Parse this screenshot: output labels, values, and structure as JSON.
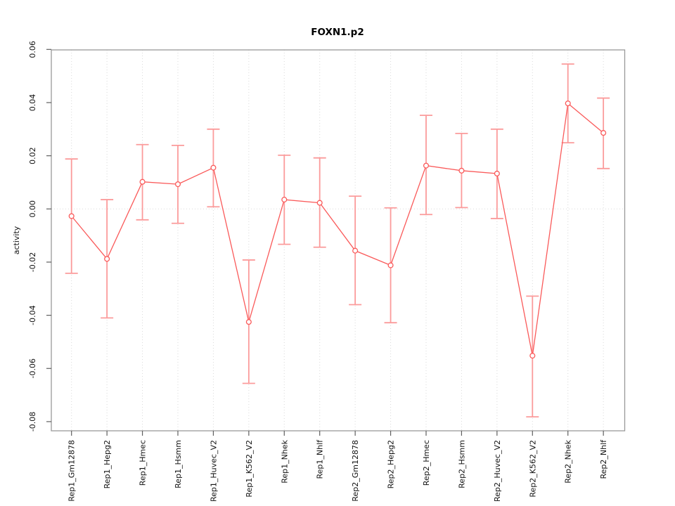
{
  "chart_data": {
    "type": "line",
    "title": "FOXN1.p2",
    "xlabel": "",
    "ylabel": "activity",
    "legend": "none",
    "grid": {
      "vertical": "dotted at every category",
      "horizontal": "dotted at y=0 only"
    },
    "ylim": [
      -0.083,
      0.06
    ],
    "ytick_values": [
      0.06,
      0.04,
      0.02,
      0.0,
      -0.02,
      -0.04,
      -0.06,
      -0.08
    ],
    "ytick_labels": [
      "0.06",
      "0.04",
      "0.02",
      "0.00",
      "-0.02",
      "-0.04",
      "-0.06",
      "-0.08"
    ],
    "categories": [
      "Rep1_Gm12878",
      "Rep1_Hepg2",
      "Rep1_Hmec",
      "Rep1_Hsmm",
      "Rep1_Huvec_V2",
      "Rep1_K562_V2",
      "Rep1_Nhek",
      "Rep1_Nhlf",
      "Rep2_Gm12878",
      "Rep2_Hepg2",
      "Rep2_Hmec",
      "Rep2_Hsmm",
      "Rep2_Huvec_V2",
      "Rep2_K562_V2",
      "Rep2_Nhek",
      "Rep2_Nhlf"
    ],
    "series": [
      {
        "name": "activity",
        "marker": "open-circle",
        "values": [
          -0.0027,
          -0.0188,
          0.0102,
          0.0093,
          0.0155,
          -0.0425,
          0.0035,
          0.0023,
          -0.0157,
          -0.0212,
          0.0163,
          0.0144,
          0.0133,
          -0.0552,
          0.0397,
          0.0286
        ],
        "error_low": [
          -0.0242,
          -0.041,
          -0.0041,
          -0.0054,
          0.0008,
          -0.0656,
          -0.0133,
          -0.0144,
          -0.036,
          -0.0428,
          -0.0021,
          0.0005,
          -0.0036,
          -0.0782,
          0.0249,
          0.0152
        ],
        "error_high": [
          0.0188,
          0.0035,
          0.0242,
          0.0239,
          0.03,
          -0.0192,
          0.0202,
          0.0192,
          0.0048,
          0.0004,
          0.0352,
          0.0284,
          0.03,
          -0.0328,
          0.0545,
          0.0417
        ]
      }
    ],
    "colors": {
      "series_line": "#fa5a5a",
      "error_bar": "#fb9b9b",
      "marker_stroke": "#fa5a5a",
      "marker_fill": "#ffffff",
      "grid": "#d9d9d9",
      "box": "#999999",
      "tick": "#5f5f5f",
      "text": "#111111"
    }
  }
}
